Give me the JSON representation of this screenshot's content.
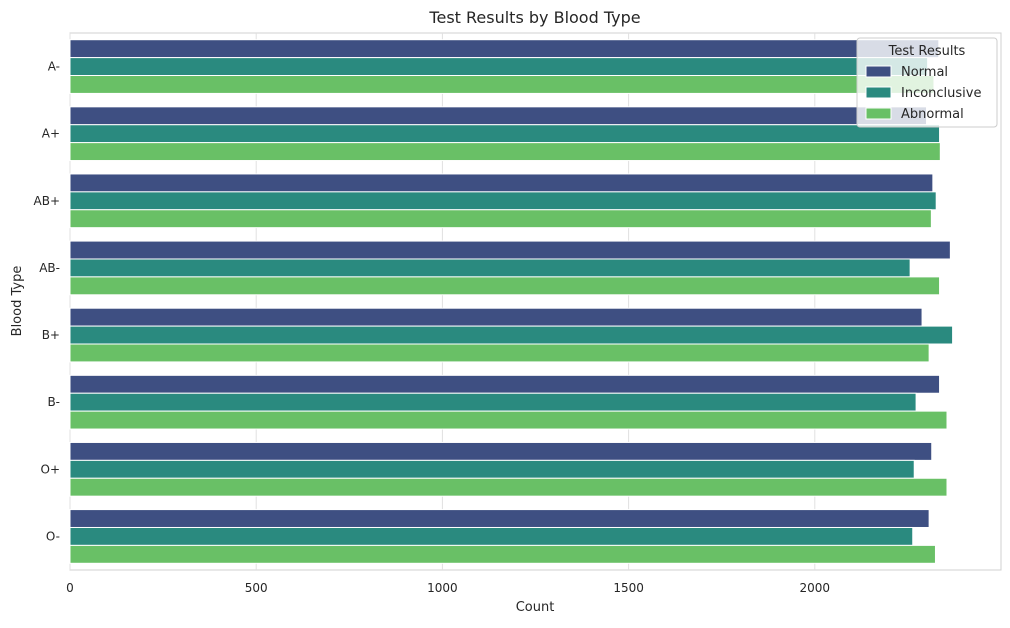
{
  "chart_data": {
    "type": "bar",
    "orientation": "horizontal",
    "title": "Test Results by Blood Type",
    "xlabel": "Count",
    "ylabel": "Blood Type",
    "xlim": [
      0,
      2500
    ],
    "xticks": [
      0,
      500,
      1000,
      1500,
      2000
    ],
    "grid": true,
    "categories": [
      "A-",
      "A+",
      "AB+",
      "AB-",
      "B+",
      "B-",
      "O+",
      "O-"
    ],
    "legend": {
      "title": "Test Results",
      "position": "top-right"
    },
    "series": [
      {
        "name": "Normal",
        "color": "#3e4f82",
        "values": [
          2333,
          2300,
          2317,
          2364,
          2288,
          2335,
          2314,
          2307
        ]
      },
      {
        "name": "Inconclusive",
        "color": "#2a8a7f",
        "values": [
          2303,
          2335,
          2326,
          2256,
          2370,
          2272,
          2267,
          2263
        ]
      },
      {
        "name": "Abnormal",
        "color": "#69c066",
        "values": [
          2320,
          2337,
          2313,
          2335,
          2307,
          2355,
          2355,
          2324
        ]
      }
    ]
  }
}
